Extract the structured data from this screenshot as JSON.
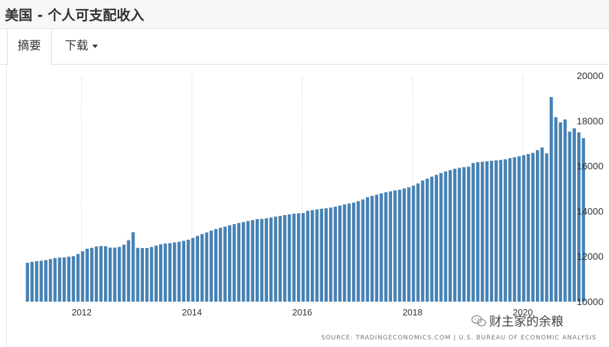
{
  "page": {
    "title": "美国 - 个人可支配收入",
    "tabs": [
      {
        "label": "摘要"
      },
      {
        "label": "下载"
      }
    ],
    "watermark": "财主家的余粮",
    "source": "SOURCE: TRADINGECONOMICS.COM | U.S. BUREAU OF ECONOMIC ANALYSIS"
  },
  "colors": {
    "bar": "#4682b4",
    "grid": "#d9d9d9",
    "axis_text": "#333333"
  },
  "chart_data": {
    "type": "bar",
    "title": "美国 - 个人可支配收入",
    "xlabel": "",
    "ylabel": "",
    "ylim": [
      10000,
      20000
    ],
    "yticks": [
      10000,
      12000,
      14000,
      16000,
      18000,
      20000
    ],
    "x_start": "2011-01",
    "x_ticks": [
      "2012",
      "2014",
      "2016",
      "2018",
      "2020"
    ],
    "grid": "vertical dotted at year ticks",
    "frequency": "monthly",
    "series": [
      {
        "values": [
          11720,
          11760,
          11790,
          11810,
          11840,
          11880,
          11930,
          11950,
          11960,
          11990,
          12010,
          12110,
          12230,
          12340,
          12380,
          12440,
          12460,
          12450,
          12390,
          12390,
          12420,
          12520,
          12720,
          13070,
          12380,
          12370,
          12370,
          12420,
          12480,
          12540,
          12570,
          12590,
          12620,
          12650,
          12690,
          12740,
          12820,
          12910,
          12990,
          13060,
          13140,
          13210,
          13270,
          13320,
          13380,
          13430,
          13480,
          13520,
          13570,
          13610,
          13650,
          13660,
          13690,
          13720,
          13760,
          13790,
          13830,
          13860,
          13890,
          13910,
          13920,
          14020,
          14050,
          14080,
          14110,
          14130,
          14160,
          14200,
          14250,
          14300,
          14340,
          14380,
          14450,
          14520,
          14620,
          14680,
          14730,
          14790,
          14840,
          14880,
          14920,
          14950,
          15010,
          15060,
          15130,
          15230,
          15360,
          15440,
          15530,
          15610,
          15690,
          15760,
          15820,
          15880,
          15920,
          15950,
          15970,
          16130,
          16170,
          16190,
          16210,
          16230,
          16250,
          16270,
          16300,
          16350,
          16390,
          16430,
          16480,
          16530,
          16580,
          16700,
          16820,
          16560,
          19050,
          18160,
          17930,
          18060,
          17520,
          17670,
          17490,
          17230
        ]
      }
    ]
  }
}
